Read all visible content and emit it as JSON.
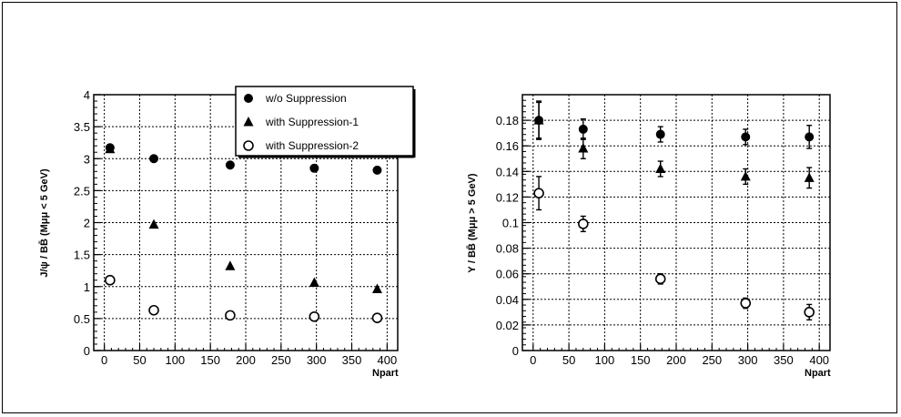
{
  "chart_data": [
    {
      "type": "scatter",
      "ylabel": "J/ψ / BB̄ (Mμμ < 5 GeV)",
      "xlabel": "Npart",
      "xlim": [
        -15,
        415
      ],
      "ylim": [
        0,
        4
      ],
      "xticks": [
        "0",
        "50",
        "100",
        "150",
        "200",
        "250",
        "300",
        "350",
        "400"
      ],
      "yticks": [
        "0",
        "0.5",
        "1",
        "1.5",
        "2",
        "2.5",
        "3",
        "3.5",
        "4"
      ],
      "grid": true,
      "legend_placement": "top-right",
      "x": [
        8,
        70,
        178,
        297,
        386
      ],
      "series": [
        {
          "name": "w/o Suppression",
          "marker": "filled-circle",
          "values": [
            3.17,
            3.0,
            2.9,
            2.85,
            2.82
          ]
        },
        {
          "name": "with Suppression-1",
          "marker": "filled-triangle",
          "values": [
            3.15,
            1.97,
            1.32,
            1.06,
            0.96
          ]
        },
        {
          "name": "with Suppression-2",
          "marker": "open-circle",
          "values": [
            1.1,
            0.63,
            0.55,
            0.53,
            0.51
          ]
        }
      ]
    },
    {
      "type": "scatter",
      "ylabel": "Υ / BB̄ (Mμμ > 5 GeV)",
      "xlabel": "Npart",
      "xlim": [
        -15,
        415
      ],
      "ylim": [
        0,
        0.2
      ],
      "xticks": [
        "0",
        "50",
        "100",
        "150",
        "200",
        "250",
        "300",
        "350",
        "400"
      ],
      "yticks": [
        "0",
        "0.02",
        "0.04",
        "0.06",
        "0.08",
        "0.1",
        "0.12",
        "0.14",
        "0.16",
        "0.18"
      ],
      "grid": true,
      "x": [
        8,
        70,
        178,
        297,
        386
      ],
      "series": [
        {
          "name": "w/o Suppression",
          "marker": "filled-circle",
          "values": [
            0.18,
            0.173,
            0.169,
            0.167,
            0.167
          ],
          "errors": [
            0.015,
            0.008,
            0.006,
            0.006,
            0.009
          ]
        },
        {
          "name": "with Suppression-1",
          "marker": "filled-triangle",
          "values": [
            0.18,
            0.158,
            0.142,
            0.136,
            0.135
          ],
          "errors": [
            0.014,
            0.008,
            0.006,
            0.006,
            0.008
          ]
        },
        {
          "name": "with Suppression-2",
          "marker": "open-circle",
          "values": [
            0.123,
            0.099,
            0.056,
            0.037,
            0.03
          ],
          "errors": [
            0.013,
            0.006,
            0.004,
            0.004,
            0.006
          ]
        }
      ]
    }
  ]
}
